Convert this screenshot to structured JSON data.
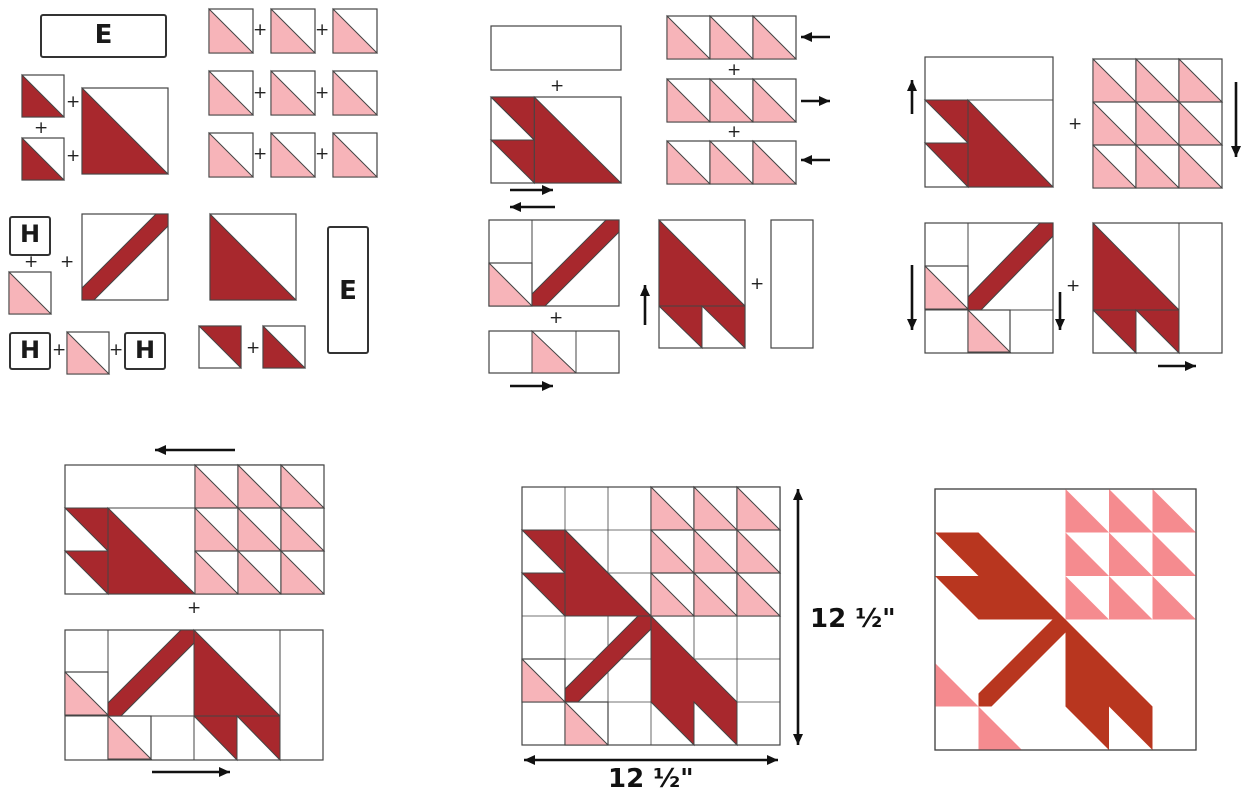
{
  "colors": {
    "dark": "#a8282d",
    "pink": "#f7b4b9",
    "line": "#444444",
    "paper": "#ffffff",
    "final_dark": "#b8361f",
    "final_pink": "#f58b8f"
  },
  "labels": {
    "E": "E",
    "H": "H",
    "plus": "+"
  },
  "dimensions": {
    "height": "12 ½\"",
    "width": "12 ½\""
  }
}
